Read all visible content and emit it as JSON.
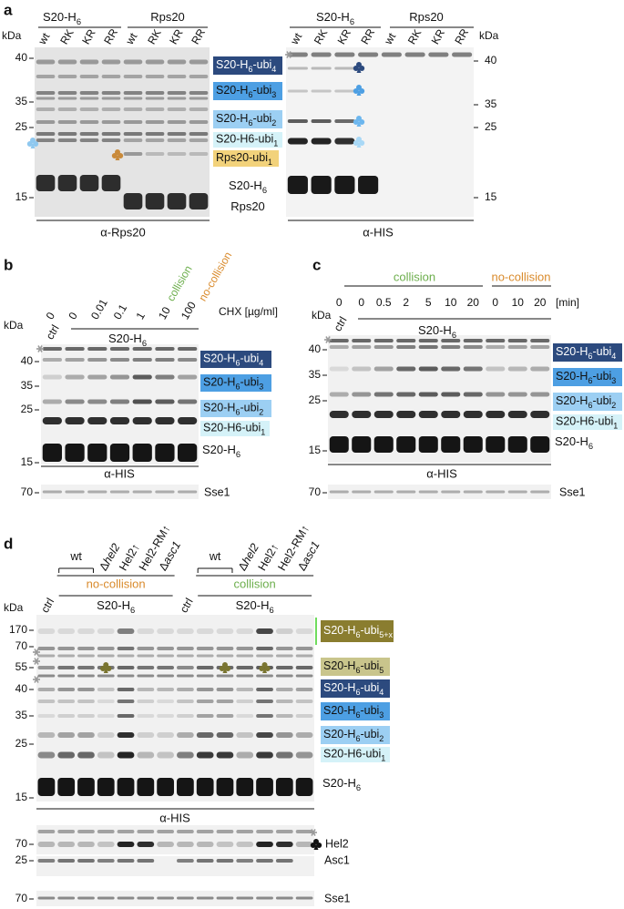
{
  "a": {
    "label": "a",
    "left": {
      "groups": [
        [
          "S20-H",
          "6"
        ],
        [
          "Rps20"
        ]
      ],
      "lanes": [
        "wt",
        "RK",
        "KR",
        "RR",
        "wt",
        "RK",
        "KR",
        "RR"
      ],
      "kda": "kDa",
      "markers": [
        "40",
        "35",
        "25",
        "15"
      ],
      "antibody": "α-Rps20"
    },
    "right": {
      "groups": [
        [
          "S20-H",
          "6"
        ],
        [
          "Rps20"
        ]
      ],
      "lanes": [
        "wt",
        "RK",
        "KR",
        "RR",
        "wt",
        "RK",
        "KR",
        "RR"
      ],
      "kda": "kDa",
      "markers": [
        "40",
        "35",
        "25",
        "15"
      ],
      "antibody": "α-HIS"
    },
    "bands": [
      [
        "S20-H",
        "6",
        "-ubi",
        "4"
      ],
      [
        "S20-H",
        "6",
        "-ubi",
        "3"
      ],
      [
        "S20-H",
        "6",
        "-ubi",
        "2"
      ],
      [
        "S20-H6-ubi",
        "1"
      ],
      [
        "Rps20-ubi",
        "1"
      ],
      [
        "S20-H",
        "6"
      ],
      [
        "Rps20"
      ]
    ]
  },
  "b": {
    "label": "b",
    "concentrations": [
      "0",
      "0",
      "0.01",
      "0.1",
      "1",
      "10",
      "100"
    ],
    "unit": "CHX [µg/ml]",
    "collision": "collision",
    "no_collision": "no-collision",
    "ctrl": "ctrl",
    "sample": [
      "S20-H",
      "6"
    ],
    "kda": "kDa",
    "markers": [
      "40",
      "35",
      "25",
      "15"
    ],
    "bands": [
      [
        "S20-H",
        "6",
        "-ubi",
        "4"
      ],
      [
        "S20-H",
        "6",
        "-ubi",
        "3"
      ],
      [
        "S20-H",
        "6",
        "-ubi",
        "2"
      ],
      [
        "S20-H6-ubi",
        "1"
      ],
      [
        "S20-H",
        "6"
      ]
    ],
    "antibody": "α-HIS",
    "loading": {
      "marker": "70",
      "name": "Sse1"
    }
  },
  "c": {
    "label": "c",
    "collision": "collision",
    "no_collision": "no-collision",
    "times": [
      "0",
      "0",
      "0.5",
      "2",
      "5",
      "10",
      "20",
      "0",
      "10",
      "20"
    ],
    "unit": "[min]",
    "ctrl": "ctrl",
    "sample": [
      "S20-H",
      "6"
    ],
    "kda": "kDa",
    "markers": [
      "40",
      "35",
      "25",
      "15"
    ],
    "bands": [
      [
        "S20-H",
        "6",
        "-ubi",
        "4"
      ],
      [
        "S20-H",
        "6",
        "-ubi",
        "3"
      ],
      [
        "S20-H",
        "6",
        "-ubi",
        "2"
      ],
      [
        "S20-H6-ubi",
        "1"
      ],
      [
        "S20-H",
        "6"
      ]
    ],
    "antibody": "α-HIS",
    "loading": {
      "marker": "70",
      "name": "Sse1"
    }
  },
  "d": {
    "label": "d",
    "groups": [
      {
        "condition": "no-collision",
        "ctrl": "ctrl",
        "sample": [
          "S20-H",
          "6"
        ],
        "lanes": [
          [
            "wt"
          ],
          [
            "Δ",
            "hel2"
          ],
          [
            "Hel2↑"
          ],
          [
            "Hel2-RM↑"
          ],
          [
            "Δ",
            "asc1"
          ]
        ]
      },
      {
        "condition": "collision",
        "ctrl": "ctrl",
        "sample": [
          "S20-H",
          "6"
        ],
        "lanes": [
          [
            "wt"
          ],
          [
            "Δ",
            "hel2"
          ],
          [
            "Hel2↑"
          ],
          [
            "Hel2-RM↑"
          ],
          [
            "Δ",
            "asc1"
          ]
        ]
      }
    ],
    "kda": "kDa",
    "markers": [
      "170",
      "70",
      "55",
      "40",
      "35",
      "25",
      "15"
    ],
    "bands": [
      [
        "S20-H",
        "6",
        "-ubi",
        "5+x"
      ],
      [
        "S20-H",
        "6",
        "-ubi",
        "5"
      ],
      [
        "S20-H",
        "6",
        "-ubi",
        "4"
      ],
      [
        "S20-H",
        "6",
        "-ubi",
        "3"
      ],
      [
        "S20-H",
        "6",
        "-ubi",
        "2"
      ],
      [
        "S20-H6-ubi",
        "1"
      ],
      [
        "S20-H",
        "6"
      ]
    ],
    "antibody": "α-HIS",
    "strips": [
      {
        "marker": "70",
        "name": "Hel2"
      },
      {
        "marker": "25",
        "name": "Asc1"
      },
      {
        "marker": "70",
        "name": "Sse1"
      }
    ]
  }
}
